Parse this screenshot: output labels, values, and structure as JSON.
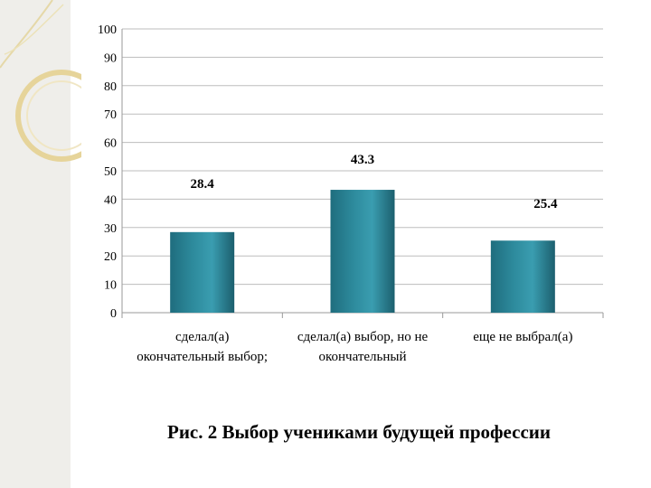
{
  "chart_data": {
    "type": "bar",
    "categories": [
      [
        "сделал(а)",
        "окончательный выбор;"
      ],
      [
        "сделал(а) выбор, но не",
        "окончательный"
      ],
      [
        "еще не выбрал(а)"
      ]
    ],
    "values": [
      28.4,
      43.3,
      25.4
    ],
    "data_labels": [
      "28.4",
      "43.3",
      "25.4"
    ],
    "ylim": [
      0,
      100
    ],
    "yticks": [
      0,
      10,
      20,
      30,
      40,
      50,
      60,
      70,
      80,
      90,
      100
    ],
    "grid": true,
    "legend": "none",
    "bar_color": "#2d8a9c"
  },
  "caption": "Рис. 2 Выбор учениками будущей профессии"
}
